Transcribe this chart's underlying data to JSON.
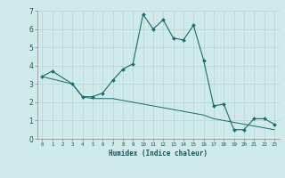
{
  "xlabel": "Humidex (Indice chaleur)",
  "background_color": "#ceeaea",
  "line_color": "#1a6b6b",
  "grid_color": "#b8d4d4",
  "xlim": [
    -0.5,
    23.5
  ],
  "ylim": [
    0,
    7
  ],
  "series1_x": [
    0,
    1,
    3,
    4,
    5,
    6,
    7,
    8,
    9,
    10,
    11,
    12,
    13,
    14,
    15,
    16,
    17,
    18,
    19,
    20,
    21,
    22,
    23
  ],
  "series1_y": [
    3.4,
    3.7,
    3.0,
    2.3,
    2.3,
    2.5,
    3.2,
    3.8,
    4.1,
    6.8,
    6.0,
    6.5,
    5.5,
    5.4,
    6.2,
    4.3,
    1.8,
    1.9,
    0.5,
    0.5,
    1.1,
    1.1,
    0.8
  ],
  "series2_x": [
    0,
    3,
    4,
    5,
    6,
    7,
    8,
    9,
    10,
    11,
    12,
    13,
    14,
    15,
    16,
    17,
    18,
    19,
    20,
    21,
    22,
    23
  ],
  "series2_y": [
    3.4,
    3.0,
    2.3,
    2.2,
    2.2,
    2.2,
    2.1,
    2.0,
    1.9,
    1.8,
    1.7,
    1.6,
    1.5,
    1.4,
    1.3,
    1.1,
    1.0,
    0.9,
    0.8,
    0.7,
    0.6,
    0.5
  ]
}
